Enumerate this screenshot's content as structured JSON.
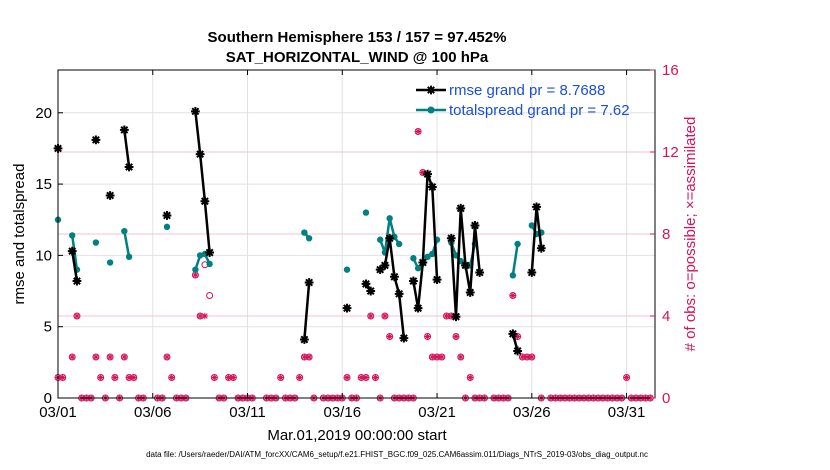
{
  "chart_data": {
    "type": "line",
    "title": "Southern Hemisphere 153 / 157 = 97.452%",
    "subtitle": "SAT_HORIZONTAL_WIND @ 100 hPa",
    "xlabel": "Mar.01,2019 00:00:00 start",
    "ylabel": "rmse and totalspread",
    "ylabel_right": "# of obs: o=possible; ×=assimilated",
    "footer": "data file: /Users/raeder/DAI/ATM_forcXX/CAM6_setup/f.e21.FHIST_BGC.f09_025.CAM6assim.011/Diags_NTrS_2019-03/obs_diag_output.nc",
    "xlim": [
      0,
      31.5
    ],
    "ylim": [
      0,
      23
    ],
    "ylim_right": [
      0,
      16
    ],
    "x_ticks": [
      0,
      5,
      10,
      15,
      20,
      25,
      30
    ],
    "x_tick_labels": [
      "03/01",
      "03/06",
      "03/11",
      "03/16",
      "03/21",
      "03/26",
      "03/31"
    ],
    "y_ticks": [
      0,
      5,
      10,
      15,
      20
    ],
    "y_ticks_right": [
      0,
      4,
      8,
      12,
      16
    ],
    "grid": true,
    "legend_position": "top-right",
    "colors": {
      "rmse": "#000000",
      "spread": "#008080",
      "obs": "#d4145a",
      "legend_text": "#1a4fd6"
    },
    "series": [
      {
        "name": "rmse grand pr = 8.7688",
        "axis": "left",
        "segments": [
          [
            [
              0,
              17.5
            ]
          ],
          [
            [
              0.75,
              10.3
            ],
            [
              1,
              8.2
            ]
          ],
          [
            [
              2,
              18.1
            ]
          ],
          [
            [
              2.75,
              14.2
            ]
          ],
          [
            [
              3.5,
              18.8
            ],
            [
              3.75,
              16.2
            ]
          ],
          [
            [
              5.75,
              12.8
            ]
          ],
          [
            [
              7.25,
              20.1
            ],
            [
              7.5,
              17.1
            ],
            [
              7.75,
              13.8
            ],
            [
              8,
              10.2
            ]
          ],
          [
            [
              13,
              4.1
            ],
            [
              13.25,
              8.1
            ]
          ],
          [
            [
              15.25,
              6.3
            ]
          ],
          [
            [
              16.25,
              8.0
            ],
            [
              16.5,
              7.5
            ]
          ],
          [
            [
              17,
              9.0
            ],
            [
              17.25,
              9.3
            ],
            [
              17.5,
              11.2
            ],
            [
              17.75,
              8.5
            ],
            [
              18,
              7.3
            ],
            [
              18.25,
              4.2
            ]
          ],
          [
            [
              18.75,
              8.2
            ],
            [
              19,
              6.3
            ],
            [
              19.25,
              9.5
            ],
            [
              19.5,
              15.7
            ],
            [
              19.75,
              14.8
            ],
            [
              20,
              8.3
            ]
          ],
          [
            [
              20.75,
              11.2
            ],
            [
              21,
              5.7
            ],
            [
              21.25,
              13.3
            ],
            [
              21.5,
              9.3
            ],
            [
              21.75,
              7.4
            ],
            [
              22,
              12.1
            ],
            [
              22.25,
              8.8
            ]
          ],
          [
            [
              24,
              4.5
            ],
            [
              24.25,
              3.3
            ]
          ],
          [
            [
              25,
              8.8
            ],
            [
              25.25,
              13.4
            ],
            [
              25.5,
              10.5
            ]
          ]
        ]
      },
      {
        "name": "totalspread grand pr = 7.62",
        "axis": "left",
        "segments": [
          [
            [
              0,
              12.5
            ]
          ],
          [
            [
              0.75,
              11.4
            ],
            [
              1,
              9.0
            ]
          ],
          [
            [
              2,
              10.9
            ]
          ],
          [
            [
              2.75,
              9.5
            ]
          ],
          [
            [
              3.5,
              11.7
            ],
            [
              3.75,
              9.9
            ]
          ],
          [
            [
              5.75,
              12.0
            ]
          ],
          [
            [
              7.25,
              9.0
            ],
            [
              7.5,
              10.0
            ],
            [
              7.75,
              10.1
            ],
            [
              8,
              9.4
            ]
          ],
          [
            [
              13,
              11.6
            ],
            [
              13.25,
              11.2
            ]
          ],
          [
            [
              15.25,
              9.0
            ]
          ],
          [
            [
              16.25,
              13.0
            ]
          ],
          [
            [
              17,
              11.1
            ],
            [
              17.25,
              10.2
            ],
            [
              17.5,
              12.6
            ],
            [
              17.75,
              11.3
            ],
            [
              18,
              10.8
            ]
          ],
          [
            [
              18.75,
              9.8
            ],
            [
              19,
              9.1
            ],
            [
              19.25,
              9.5
            ],
            [
              19.5,
              9.9
            ],
            [
              19.75,
              10.1
            ],
            [
              20,
              11.1
            ]
          ],
          [
            [
              20.75,
              10.9
            ],
            [
              21,
              10.0
            ],
            [
              21.25,
              9.6
            ],
            [
              21.5,
              9.3
            ],
            [
              21.75,
              9.3
            ],
            [
              22,
              10.8
            ]
          ],
          [
            [
              24,
              8.6
            ],
            [
              24.25,
              10.8
            ]
          ],
          [
            [
              25,
              12.1
            ],
            [
              25.25,
              11.5
            ],
            [
              25.5,
              11.6
            ]
          ]
        ]
      }
    ],
    "obs_possible": [
      [
        0,
        1
      ],
      [
        0.25,
        1
      ],
      [
        0.75,
        2
      ],
      [
        1,
        4
      ],
      [
        1.25,
        0
      ],
      [
        1.5,
        0
      ],
      [
        1.75,
        0
      ],
      [
        2,
        2
      ],
      [
        2.25,
        1
      ],
      [
        2.5,
        0
      ],
      [
        2.75,
        2
      ],
      [
        3,
        1
      ],
      [
        3.25,
        0
      ],
      [
        3.5,
        2
      ],
      [
        3.75,
        1
      ],
      [
        4,
        1
      ],
      [
        4.25,
        0
      ],
      [
        4.5,
        0
      ],
      [
        5.25,
        0
      ],
      [
        5.5,
        0
      ],
      [
        5.75,
        2
      ],
      [
        6,
        1
      ],
      [
        6.25,
        0
      ],
      [
        6.5,
        0
      ],
      [
        6.75,
        0
      ],
      [
        7.25,
        6
      ],
      [
        7.5,
        4
      ],
      [
        7.75,
        6.5
      ],
      [
        8,
        5
      ],
      [
        8.25,
        1
      ],
      [
        8.5,
        0
      ],
      [
        8.75,
        0
      ],
      [
        9,
        1
      ],
      [
        9.25,
        1
      ],
      [
        9.5,
        0
      ],
      [
        9.75,
        0
      ],
      [
        10,
        0
      ],
      [
        10.25,
        0
      ],
      [
        11,
        0
      ],
      [
        11.25,
        0
      ],
      [
        11.5,
        0
      ],
      [
        11.75,
        1
      ],
      [
        12,
        0
      ],
      [
        12.25,
        0
      ],
      [
        12.5,
        0
      ],
      [
        12.75,
        1
      ],
      [
        13,
        2
      ],
      [
        13.25,
        2
      ],
      [
        13.5,
        0
      ],
      [
        14,
        0
      ],
      [
        14.25,
        0
      ],
      [
        14.5,
        0
      ],
      [
        14.75,
        0
      ],
      [
        15,
        0
      ],
      [
        15.25,
        1
      ],
      [
        15.5,
        0
      ],
      [
        15.75,
        0
      ],
      [
        16,
        1
      ],
      [
        16.25,
        1
      ],
      [
        16.5,
        4
      ],
      [
        16.75,
        1
      ],
      [
        17,
        0
      ],
      [
        17.25,
        4
      ],
      [
        17.5,
        3
      ],
      [
        17.75,
        0
      ],
      [
        18,
        0
      ],
      [
        18.25,
        0
      ],
      [
        18.5,
        0
      ],
      [
        18.75,
        0
      ],
      [
        19,
        13
      ],
      [
        19.25,
        11
      ],
      [
        19.5,
        3
      ],
      [
        19.75,
        2
      ],
      [
        20,
        2
      ],
      [
        20.25,
        2
      ],
      [
        20.5,
        4
      ],
      [
        20.75,
        4
      ],
      [
        21,
        3
      ],
      [
        21.25,
        2
      ],
      [
        21.5,
        0
      ],
      [
        21.75,
        1
      ],
      [
        22,
        0
      ],
      [
        22.25,
        0
      ],
      [
        22.5,
        0
      ],
      [
        23,
        0
      ],
      [
        23.25,
        0
      ],
      [
        23.5,
        0
      ],
      [
        23.75,
        0
      ],
      [
        24,
        5
      ],
      [
        24.25,
        3
      ],
      [
        24.5,
        2
      ],
      [
        24.75,
        2
      ],
      [
        25,
        2
      ],
      [
        25.5,
        0
      ],
      [
        26,
        0
      ],
      [
        26.25,
        0
      ],
      [
        26.5,
        0
      ],
      [
        26.75,
        0
      ],
      [
        27,
        0
      ],
      [
        27.25,
        0
      ],
      [
        27.5,
        0
      ],
      [
        27.75,
        0
      ],
      [
        28,
        0
      ],
      [
        28.25,
        0
      ],
      [
        28.5,
        0
      ],
      [
        28.75,
        0
      ],
      [
        29,
        0
      ],
      [
        29.25,
        0
      ],
      [
        29.5,
        0
      ],
      [
        29.75,
        0
      ],
      [
        30,
        1
      ],
      [
        30.25,
        0
      ],
      [
        30.5,
        0
      ],
      [
        30.75,
        0
      ],
      [
        31,
        0
      ],
      [
        31.25,
        0
      ]
    ],
    "obs_assimilated": [
      [
        0,
        1
      ],
      [
        0.25,
        1
      ],
      [
        0.75,
        2
      ],
      [
        1,
        4
      ],
      [
        1.25,
        0
      ],
      [
        1.5,
        0
      ],
      [
        1.75,
        0
      ],
      [
        2,
        2
      ],
      [
        2.25,
        1
      ],
      [
        2.5,
        0
      ],
      [
        2.75,
        2
      ],
      [
        3,
        1
      ],
      [
        3.25,
        0
      ],
      [
        3.5,
        2
      ],
      [
        3.75,
        1
      ],
      [
        4,
        1
      ],
      [
        4.25,
        0
      ],
      [
        4.5,
        0
      ],
      [
        5.25,
        0
      ],
      [
        5.5,
        0
      ],
      [
        5.75,
        2
      ],
      [
        6,
        1
      ],
      [
        6.25,
        0
      ],
      [
        6.5,
        0
      ],
      [
        6.75,
        0
      ],
      [
        7.25,
        6
      ],
      [
        7.5,
        4
      ],
      [
        7.75,
        4
      ],
      [
        8.25,
        1
      ],
      [
        8.5,
        0
      ],
      [
        8.75,
        0
      ],
      [
        9,
        1
      ],
      [
        9.25,
        1
      ],
      [
        9.5,
        0
      ],
      [
        9.75,
        0
      ],
      [
        10,
        0
      ],
      [
        10.25,
        0
      ],
      [
        11,
        0
      ],
      [
        11.25,
        0
      ],
      [
        11.5,
        0
      ],
      [
        11.75,
        1
      ],
      [
        12,
        0
      ],
      [
        12.25,
        0
      ],
      [
        12.5,
        0
      ],
      [
        12.75,
        1
      ],
      [
        13,
        2
      ],
      [
        13.25,
        2
      ],
      [
        13.5,
        0
      ],
      [
        14,
        0
      ],
      [
        14.25,
        0
      ],
      [
        14.5,
        0
      ],
      [
        14.75,
        0
      ],
      [
        15,
        0
      ],
      [
        15.25,
        1
      ],
      [
        15.5,
        0
      ],
      [
        15.75,
        0
      ],
      [
        16,
        1
      ],
      [
        16.25,
        1
      ],
      [
        16.5,
        4
      ],
      [
        16.75,
        1
      ],
      [
        17,
        0
      ],
      [
        17.25,
        4
      ],
      [
        17.5,
        3
      ],
      [
        17.75,
        0
      ],
      [
        18,
        0
      ],
      [
        18.25,
        0
      ],
      [
        18.5,
        0
      ],
      [
        18.75,
        0
      ],
      [
        19,
        13
      ],
      [
        19.25,
        11
      ],
      [
        19.5,
        3
      ],
      [
        19.75,
        2
      ],
      [
        20,
        2
      ],
      [
        20.25,
        2
      ],
      [
        20.5,
        4
      ],
      [
        20.75,
        4
      ],
      [
        21,
        3
      ],
      [
        21.25,
        2
      ],
      [
        21.5,
        0
      ],
      [
        21.75,
        1
      ],
      [
        22,
        0
      ],
      [
        22.25,
        0
      ],
      [
        22.5,
        0
      ],
      [
        23,
        0
      ],
      [
        23.25,
        0
      ],
      [
        23.5,
        0
      ],
      [
        23.75,
        0
      ],
      [
        24,
        5
      ],
      [
        24.25,
        3
      ],
      [
        24.5,
        2
      ],
      [
        24.75,
        2
      ],
      [
        25,
        2
      ],
      [
        25.5,
        0
      ],
      [
        26,
        0
      ],
      [
        26.25,
        0
      ],
      [
        26.5,
        0
      ],
      [
        26.75,
        0
      ],
      [
        27,
        0
      ],
      [
        27.25,
        0
      ],
      [
        27.5,
        0
      ],
      [
        27.75,
        0
      ],
      [
        28,
        0
      ],
      [
        28.25,
        0
      ],
      [
        28.5,
        0
      ],
      [
        28.75,
        0
      ],
      [
        29,
        0
      ],
      [
        29.25,
        0
      ],
      [
        29.5,
        0
      ],
      [
        29.75,
        0
      ],
      [
        30,
        1
      ],
      [
        30.25,
        0
      ],
      [
        30.5,
        0
      ],
      [
        30.75,
        0
      ],
      [
        31,
        0
      ],
      [
        31.25,
        0
      ]
    ]
  }
}
